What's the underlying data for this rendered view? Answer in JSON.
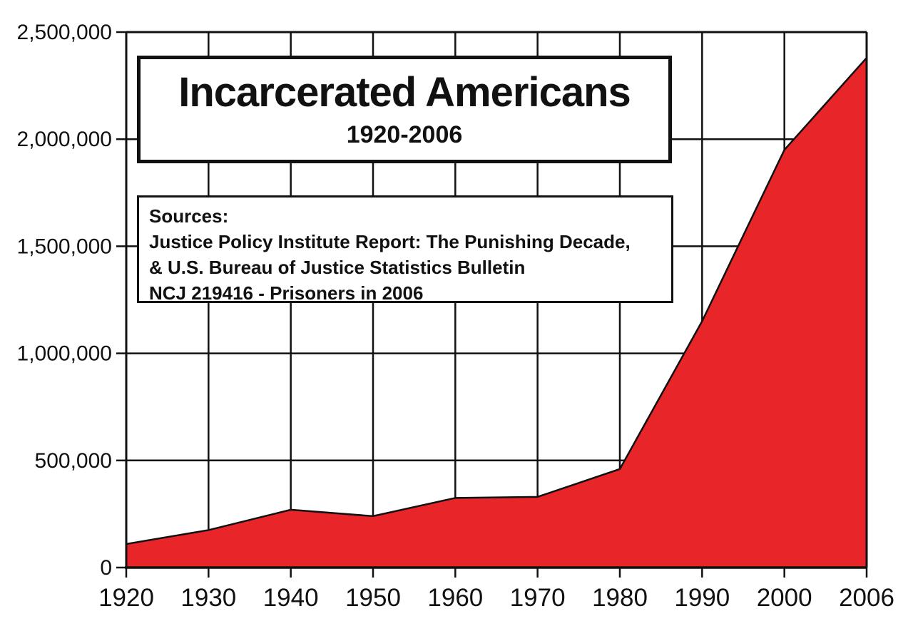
{
  "chart_data": {
    "type": "area",
    "title": "Incarcerated Americans",
    "subtitle": "1920-2006",
    "xlabel": "",
    "ylabel": "",
    "categories": [
      "1920",
      "1930",
      "1940",
      "1950",
      "1960",
      "1970",
      "1980",
      "1990",
      "2000",
      "2006"
    ],
    "values": [
      110000,
      175000,
      270000,
      240000,
      325000,
      330000,
      460000,
      1150000,
      1950000,
      2380000
    ],
    "ylim": [
      0,
      2500000
    ],
    "y_ticks": [
      0,
      500000,
      1000000,
      1500000,
      2000000,
      2500000
    ],
    "y_tick_labels": [
      "0",
      "500,000",
      "1,000,000",
      "1,500,000",
      "2,000,000",
      "2,500,000"
    ],
    "grid": true,
    "legend": "none",
    "area_color": "#E8262A",
    "outline_color": "#111111",
    "axis_color": "#111111"
  },
  "sources_box": {
    "lines": [
      "Sources:",
      "Justice Policy Institute Report: The Punishing Decade,",
      "& U.S. Bureau of Justice Statistics Bulletin",
      "NCJ 219416 - Prisoners in 2006"
    ]
  }
}
